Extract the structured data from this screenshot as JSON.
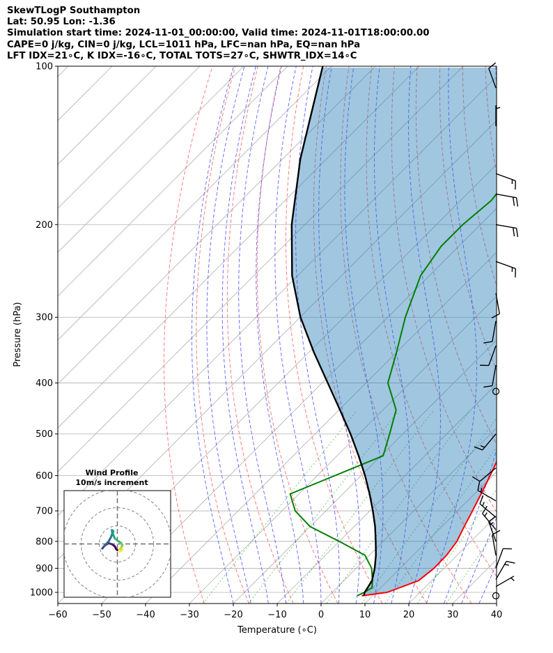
{
  "chart_data": {
    "type": "line",
    "title_lines": [
      "SkewTLogP Southampton",
      "Lat: 50.95   Lon: -1.36",
      "Simulation start time: 2024-11-01_00:00:00, Valid time: 2024-11-01T18:00:00.00",
      "CAPE=0 j/kg, CIN=0 j/kg, LCL=1011 hPa, LFC=nan hPa, EQ=nan hPa",
      "LFT IDX=21∘C, K IDX=-16∘C, TOTAL TOTS=27∘C, SHWTR_IDX=14∘C"
    ],
    "xlabel": "Temperature (∘C)",
    "ylabel": "Pressure (hPa)",
    "xlim": [
      -60,
      40
    ],
    "ylim": [
      1050,
      100
    ],
    "yscale": "log",
    "skew": "45 degrees",
    "grid": true,
    "x_ticks": [
      -60,
      -50,
      -40,
      -30,
      -20,
      -10,
      0,
      10,
      20,
      30,
      40
    ],
    "y_ticks": [
      1000,
      900,
      800,
      700,
      600,
      500,
      400,
      300,
      200,
      100
    ],
    "series": [
      {
        "key": "temperature",
        "color": "#ff0000",
        "points": [
          [
            1015,
            7.5
          ],
          [
            1000,
            12.5
          ],
          [
            950,
            17
          ],
          [
            900,
            17.7
          ],
          [
            850,
            17.6
          ],
          [
            800,
            16.8
          ],
          [
            750,
            15.1
          ],
          [
            700,
            13.4
          ],
          [
            650,
            11.5
          ],
          [
            600,
            9.4
          ],
          [
            550,
            7.0
          ],
          [
            500,
            3.9
          ],
          [
            450,
            1.1
          ],
          [
            400,
            -2.5
          ],
          [
            350,
            -7.3
          ],
          [
            300,
            -13.4
          ],
          [
            275,
            -18
          ],
          [
            250,
            -22
          ],
          [
            230,
            -25.5
          ],
          [
            210,
            -30
          ],
          [
            200,
            -32.5
          ],
          [
            180,
            -37
          ],
          [
            165,
            -41.5
          ],
          [
            150,
            -45
          ],
          [
            135,
            -49
          ],
          [
            125,
            -53.5
          ],
          [
            115,
            -57
          ],
          [
            105,
            -59
          ],
          [
            100,
            -61
          ]
        ]
      },
      {
        "key": "dewpoint",
        "color": "#008000",
        "points": [
          [
            1015,
            6.5
          ],
          [
            1000,
            7.3
          ],
          [
            980,
            8
          ],
          [
            950,
            6.5
          ],
          [
            900,
            3.5
          ],
          [
            850,
            -1
          ],
          [
            800,
            -10
          ],
          [
            750,
            -20
          ],
          [
            700,
            -27
          ],
          [
            650,
            -32
          ],
          [
            600,
            -26
          ],
          [
            550,
            -19.5
          ],
          [
            500,
            -23
          ],
          [
            450,
            -27
          ],
          [
            400,
            -35
          ],
          [
            350,
            -40
          ],
          [
            300,
            -46
          ],
          [
            250,
            -52
          ],
          [
            220,
            -54
          ],
          [
            200,
            -54
          ],
          [
            180,
            -53
          ],
          [
            165,
            -54
          ],
          [
            150,
            -57
          ],
          [
            135,
            -62
          ],
          [
            120,
            -65
          ],
          [
            110,
            -66
          ],
          [
            100,
            -68
          ]
        ]
      },
      {
        "key": "parcel",
        "color": "#000000",
        "points": [
          [
            1015,
            8
          ],
          [
            1000,
            7.4
          ],
          [
            950,
            6.4
          ],
          [
            900,
            4.2
          ],
          [
            850,
            1.5
          ],
          [
            800,
            -1.7
          ],
          [
            750,
            -5.2
          ],
          [
            700,
            -9.3
          ],
          [
            650,
            -13.9
          ],
          [
            600,
            -19.1
          ],
          [
            550,
            -25.1
          ],
          [
            500,
            -31.9
          ],
          [
            450,
            -39.8
          ],
          [
            400,
            -48.7
          ],
          [
            350,
            -58.8
          ],
          [
            300,
            -69.9
          ],
          [
            250,
            -81.3
          ],
          [
            200,
            -93
          ],
          [
            150,
            -106
          ],
          [
            100,
            -122
          ]
        ]
      }
    ],
    "wind_barbs": [
      {
        "p": 1015,
        "dir": 0,
        "speed": 0
      },
      {
        "p": 975,
        "dir": 60,
        "speed": 5
      },
      {
        "p": 945,
        "dir": 30,
        "speed": 15
      },
      {
        "p": 900,
        "dir": 20,
        "speed": 10
      },
      {
        "p": 850,
        "dir": 350,
        "speed": 10
      },
      {
        "p": 800,
        "dir": 340,
        "speed": 15
      },
      {
        "p": 760,
        "dir": 320,
        "speed": 15
      },
      {
        "p": 720,
        "dir": 310,
        "speed": 15
      },
      {
        "p": 670,
        "dir": 300,
        "speed": 15
      },
      {
        "p": 580,
        "dir": 230,
        "speed": 10
      },
      {
        "p": 500,
        "dir": 220,
        "speed": 15
      },
      {
        "p": 415,
        "dir": 0,
        "speed": 0
      },
      {
        "p": 370,
        "dir": 190,
        "speed": 10
      },
      {
        "p": 340,
        "dir": 200,
        "speed": 10
      },
      {
        "p": 305,
        "dir": 190,
        "speed": 10
      },
      {
        "p": 270,
        "dir": 170,
        "speed": 10
      },
      {
        "p": 235,
        "dir": 110,
        "speed": 15
      },
      {
        "p": 200,
        "dir": 100,
        "speed": 20
      },
      {
        "p": 175,
        "dir": 100,
        "speed": 20
      },
      {
        "p": 160,
        "dir": 110,
        "speed": 15
      },
      {
        "p": 130,
        "dir": 0,
        "speed": 5
      },
      {
        "p": 110,
        "dir": 340,
        "speed": 10
      }
    ],
    "hodograph": {
      "title": "Wind Profile",
      "subtitle": "10m/s increment",
      "points": [
        [
          0,
          -2.5
        ],
        [
          -0.5,
          -2
        ],
        [
          -1,
          -1
        ],
        [
          -2,
          -0.2
        ],
        [
          -3.5,
          0.3
        ],
        [
          -5,
          -0.6
        ],
        [
          -6,
          -1.8
        ],
        [
          -5,
          -0.6
        ],
        [
          -3.5,
          1
        ],
        [
          -2.5,
          2.8
        ],
        [
          -2,
          4.2
        ],
        [
          -2.2,
          5.5
        ],
        [
          -1.6,
          5.2
        ],
        [
          -1.8,
          4
        ],
        [
          -1,
          2.2
        ],
        [
          0.5,
          1
        ],
        [
          1.5,
          0.5
        ],
        [
          2,
          -0.5
        ],
        [
          1.5,
          -1.5
        ],
        [
          1,
          -2
        ],
        [
          2,
          -2.2
        ],
        [
          1.5,
          -2.6
        ],
        [
          1,
          -3
        ]
      ],
      "rings": [
        10,
        20,
        30
      ]
    }
  }
}
